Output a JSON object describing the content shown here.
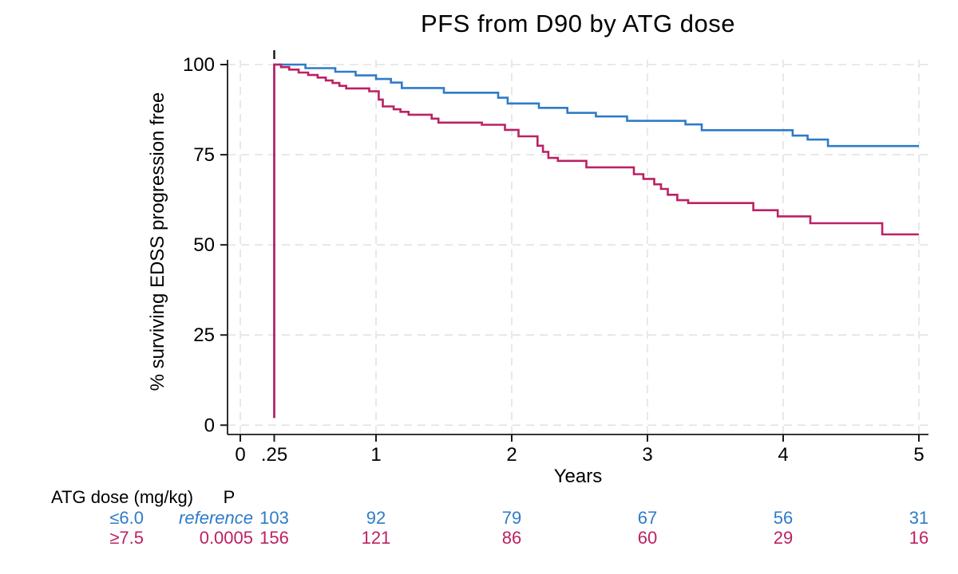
{
  "chart_data": {
    "type": "line",
    "subtype": "kaplan-meier-step",
    "title": "PFS from D90 by ATG dose",
    "xlabel": "Years",
    "ylabel": "% surviving EDSS progression free",
    "xlim": [
      0,
      5
    ],
    "ylim": [
      0,
      100
    ],
    "grid": true,
    "x_ticks": [
      {
        "t": 0,
        "label": "0"
      },
      {
        "t": 0.25,
        "label": ".25"
      },
      {
        "t": 1,
        "label": "1"
      },
      {
        "t": 2,
        "label": "2"
      },
      {
        "t": 3,
        "label": "3"
      },
      {
        "t": 4,
        "label": "4"
      },
      {
        "t": 5,
        "label": "5"
      }
    ],
    "x_gridline_years": [
      0,
      1,
      2,
      3,
      4,
      5
    ],
    "y_ticks": [
      {
        "v": 0,
        "label": "0"
      },
      {
        "v": 25,
        "label": "25"
      },
      {
        "v": 50,
        "label": "50"
      },
      {
        "v": 75,
        "label": "75"
      },
      {
        "v": 100,
        "label": "100"
      }
    ],
    "entry_time": 0.25,
    "entry_marker": {
      "t": 0.25,
      "note": "short black tick above 100% at curve start"
    },
    "series": [
      {
        "name": "ATG dose ≤6.0 mg/kg",
        "color": "#2E7CC7",
        "start_drop_from_pct": 2,
        "points": [
          [
            0.25,
            100
          ],
          [
            0.48,
            99
          ],
          [
            0.7,
            98
          ],
          [
            0.85,
            97
          ],
          [
            1.0,
            96
          ],
          [
            1.11,
            95
          ],
          [
            1.19,
            93.5
          ],
          [
            1.5,
            92.2
          ],
          [
            1.9,
            90.8
          ],
          [
            1.97,
            89.2
          ],
          [
            2.2,
            88.0
          ],
          [
            2.41,
            86.6
          ],
          [
            2.62,
            85.6
          ],
          [
            2.85,
            84.4
          ],
          [
            3.28,
            83.4
          ],
          [
            3.4,
            81.8
          ],
          [
            4.07,
            80.3
          ],
          [
            4.18,
            79.2
          ],
          [
            4.33,
            77.4
          ],
          [
            5.0,
            77.4
          ]
        ]
      },
      {
        "name": "ATG dose ≥7.5 mg/kg",
        "color": "#BC2164",
        "start_drop_from_pct": 2,
        "points": [
          [
            0.25,
            100
          ],
          [
            0.3,
            99.3
          ],
          [
            0.36,
            98.6
          ],
          [
            0.43,
            97.8
          ],
          [
            0.5,
            97.1
          ],
          [
            0.57,
            96.4
          ],
          [
            0.63,
            95.6
          ],
          [
            0.68,
            94.9
          ],
          [
            0.73,
            94.1
          ],
          [
            0.78,
            93.4
          ],
          [
            0.95,
            92.6
          ],
          [
            1.02,
            90.3
          ],
          [
            1.05,
            88.4
          ],
          [
            1.13,
            87.6
          ],
          [
            1.18,
            86.9
          ],
          [
            1.24,
            86.1
          ],
          [
            1.41,
            85.0
          ],
          [
            1.46,
            83.9
          ],
          [
            1.78,
            83.3
          ],
          [
            1.95,
            81.9
          ],
          [
            2.05,
            80.1
          ],
          [
            2.19,
            77.5
          ],
          [
            2.23,
            75.8
          ],
          [
            2.27,
            74.1
          ],
          [
            2.34,
            73.3
          ],
          [
            2.55,
            71.5
          ],
          [
            2.9,
            69.6
          ],
          [
            2.97,
            68.3
          ],
          [
            3.05,
            66.8
          ],
          [
            3.1,
            65.5
          ],
          [
            3.15,
            63.9
          ],
          [
            3.22,
            62.4
          ],
          [
            3.3,
            61.6
          ],
          [
            3.78,
            59.6
          ],
          [
            3.96,
            57.9
          ],
          [
            4.2,
            56.0
          ],
          [
            4.73,
            52.9
          ],
          [
            5.0,
            52.9
          ]
        ]
      }
    ]
  },
  "risk_table": {
    "header_group": "ATG dose (mg/kg)",
    "header_p": "P",
    "times": [
      0.25,
      1,
      2,
      3,
      4,
      5
    ],
    "rows": [
      {
        "group": "≤6.0",
        "p": "reference",
        "p_italic": true,
        "color": "#2E7CC7",
        "counts": [
          "103",
          "92",
          "79",
          "67",
          "56",
          "31"
        ]
      },
      {
        "group": "≥7.5",
        "p": "0.0005",
        "p_italic": false,
        "color": "#BC2164",
        "counts": [
          "156",
          "121",
          "86",
          "60",
          "29",
          "16"
        ]
      }
    ]
  },
  "colors": {
    "series_low_dose": "#2E7CC7",
    "series_high_dose": "#BC2164",
    "axis": "#1a1a1a",
    "gridline": "#e2e2e2",
    "text": "#000000",
    "background": "#ffffff"
  }
}
